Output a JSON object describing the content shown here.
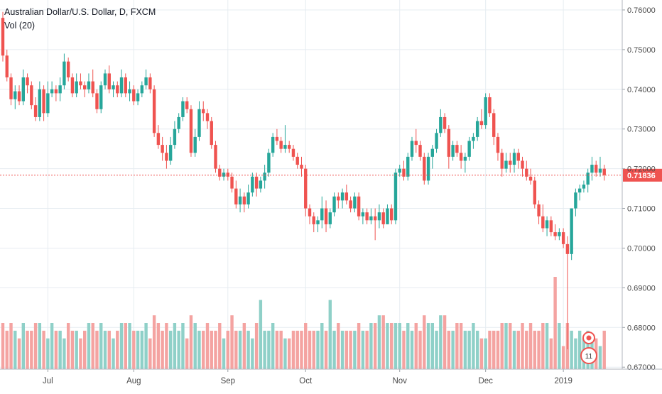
{
  "header": {
    "title": "Australian Dollar/U.S. Dollar, D, FXCM",
    "volume_label": "Vol (20)"
  },
  "colors": {
    "up": "#26a69a",
    "down": "#ef5350",
    "up_volume": "#8fd0c8",
    "down_volume": "#f4a3a1",
    "grid": "#e6ecf1",
    "price_line": "#ef5350",
    "axis_text": "#4a4a4a",
    "background": "#ffffff"
  },
  "chart_data": {
    "type": "candlestick",
    "title": "Australian Dollar/U.S. Dollar, D, FXCM",
    "y_axis": {
      "ticks": [
        "0.76000",
        "0.75000",
        "0.74000",
        "0.73000",
        "0.72000",
        "0.71000",
        "0.70000",
        "0.69000",
        "0.68000",
        "0.67000"
      ],
      "range": [
        0.6695,
        0.7625
      ],
      "position": "right"
    },
    "x_axis": {
      "ticks": [
        {
          "label": "Jul",
          "index": 11
        },
        {
          "label": "Aug",
          "index": 32
        },
        {
          "label": "Sep",
          "index": 55
        },
        {
          "label": "Oct",
          "index": 74
        },
        {
          "label": "Nov",
          "index": 97
        },
        {
          "label": "Dec",
          "index": 118
        },
        {
          "label": "2019",
          "index": 137
        }
      ]
    },
    "last_price": {
      "value": 0.71836,
      "label": "0.71836"
    },
    "ohlc": [
      [
        0.758,
        0.7595,
        0.747,
        0.7485
      ],
      [
        0.7485,
        0.75,
        0.742,
        0.743
      ],
      [
        0.743,
        0.744,
        0.736,
        0.7375
      ],
      [
        0.7375,
        0.741,
        0.735,
        0.7395
      ],
      [
        0.7395,
        0.741,
        0.736,
        0.737
      ],
      [
        0.737,
        0.745,
        0.736,
        0.743
      ],
      [
        0.743,
        0.744,
        0.739,
        0.741
      ],
      [
        0.741,
        0.742,
        0.735,
        0.736
      ],
      [
        0.736,
        0.738,
        0.732,
        0.733
      ],
      [
        0.733,
        0.742,
        0.732,
        0.74
      ],
      [
        0.74,
        0.741,
        0.732,
        0.734
      ],
      [
        0.734,
        0.742,
        0.733,
        0.739
      ],
      [
        0.739,
        0.742,
        0.738,
        0.74
      ],
      [
        0.74,
        0.741,
        0.737,
        0.739
      ],
      [
        0.739,
        0.743,
        0.737,
        0.741
      ],
      [
        0.741,
        0.749,
        0.74,
        0.747
      ],
      [
        0.747,
        0.748,
        0.742,
        0.743
      ],
      [
        0.743,
        0.744,
        0.738,
        0.739
      ],
      [
        0.739,
        0.744,
        0.738,
        0.742
      ],
      [
        0.742,
        0.744,
        0.74,
        0.741
      ],
      [
        0.741,
        0.742,
        0.738,
        0.74
      ],
      [
        0.74,
        0.744,
        0.739,
        0.742
      ],
      [
        0.742,
        0.745,
        0.738,
        0.739
      ],
      [
        0.739,
        0.74,
        0.734,
        0.735
      ],
      [
        0.735,
        0.742,
        0.734,
        0.741
      ],
      [
        0.741,
        0.745,
        0.74,
        0.744
      ],
      [
        0.744,
        0.746,
        0.739,
        0.74
      ],
      [
        0.74,
        0.742,
        0.738,
        0.741
      ],
      [
        0.741,
        0.742,
        0.738,
        0.739
      ],
      [
        0.739,
        0.745,
        0.738,
        0.743
      ],
      [
        0.743,
        0.744,
        0.738,
        0.739
      ],
      [
        0.739,
        0.742,
        0.737,
        0.74
      ],
      [
        0.74,
        0.741,
        0.736,
        0.737
      ],
      [
        0.737,
        0.74,
        0.736,
        0.739
      ],
      [
        0.739,
        0.742,
        0.738,
        0.741
      ],
      [
        0.741,
        0.745,
        0.74,
        0.743
      ],
      [
        0.743,
        0.744,
        0.739,
        0.74
      ],
      [
        0.74,
        0.741,
        0.728,
        0.729
      ],
      [
        0.729,
        0.731,
        0.725,
        0.726
      ],
      [
        0.726,
        0.728,
        0.722,
        0.724
      ],
      [
        0.724,
        0.726,
        0.72,
        0.722
      ],
      [
        0.722,
        0.728,
        0.721,
        0.726
      ],
      [
        0.726,
        0.732,
        0.725,
        0.73
      ],
      [
        0.73,
        0.734,
        0.729,
        0.733
      ],
      [
        0.733,
        0.738,
        0.732,
        0.737
      ],
      [
        0.737,
        0.738,
        0.734,
        0.735
      ],
      [
        0.735,
        0.736,
        0.723,
        0.724
      ],
      [
        0.724,
        0.73,
        0.723,
        0.728
      ],
      [
        0.728,
        0.737,
        0.727,
        0.735
      ],
      [
        0.735,
        0.737,
        0.732,
        0.734
      ],
      [
        0.734,
        0.735,
        0.73,
        0.732
      ],
      [
        0.732,
        0.733,
        0.725,
        0.726
      ],
      [
        0.726,
        0.727,
        0.719,
        0.72
      ],
      [
        0.72,
        0.721,
        0.717,
        0.718
      ],
      [
        0.718,
        0.72,
        0.717,
        0.719
      ],
      [
        0.719,
        0.72,
        0.717,
        0.718
      ],
      [
        0.718,
        0.719,
        0.714,
        0.715
      ],
      [
        0.715,
        0.717,
        0.71,
        0.711
      ],
      [
        0.711,
        0.715,
        0.709,
        0.713
      ],
      [
        0.713,
        0.714,
        0.709,
        0.711
      ],
      [
        0.711,
        0.716,
        0.71,
        0.714
      ],
      [
        0.714,
        0.719,
        0.713,
        0.718
      ],
      [
        0.718,
        0.719,
        0.713,
        0.715
      ],
      [
        0.715,
        0.718,
        0.714,
        0.717
      ],
      [
        0.717,
        0.721,
        0.715,
        0.719
      ],
      [
        0.719,
        0.725,
        0.718,
        0.724
      ],
      [
        0.724,
        0.729,
        0.723,
        0.728
      ],
      [
        0.728,
        0.73,
        0.726,
        0.727
      ],
      [
        0.727,
        0.728,
        0.724,
        0.725
      ],
      [
        0.725,
        0.731,
        0.724,
        0.726
      ],
      [
        0.726,
        0.727,
        0.724,
        0.725
      ],
      [
        0.725,
        0.726,
        0.722,
        0.723
      ],
      [
        0.723,
        0.724,
        0.72,
        0.721
      ],
      [
        0.721,
        0.723,
        0.718,
        0.72
      ],
      [
        0.72,
        0.721,
        0.708,
        0.71
      ],
      [
        0.71,
        0.711,
        0.706,
        0.708
      ],
      [
        0.708,
        0.709,
        0.704,
        0.706
      ],
      [
        0.706,
        0.708,
        0.704,
        0.707
      ],
      [
        0.707,
        0.713,
        0.705,
        0.71
      ],
      [
        0.71,
        0.712,
        0.704,
        0.706
      ],
      [
        0.706,
        0.71,
        0.705,
        0.709
      ],
      [
        0.709,
        0.714,
        0.708,
        0.713
      ],
      [
        0.713,
        0.714,
        0.71,
        0.712
      ],
      [
        0.712,
        0.715,
        0.71,
        0.714
      ],
      [
        0.714,
        0.716,
        0.711,
        0.712
      ],
      [
        0.712,
        0.713,
        0.709,
        0.71
      ],
      [
        0.71,
        0.714,
        0.709,
        0.713
      ],
      [
        0.713,
        0.714,
        0.707,
        0.708
      ],
      [
        0.708,
        0.71,
        0.706,
        0.709
      ],
      [
        0.709,
        0.71,
        0.706,
        0.707
      ],
      [
        0.707,
        0.71,
        0.706,
        0.708
      ],
      [
        0.708,
        0.71,
        0.702,
        0.707
      ],
      [
        0.707,
        0.711,
        0.705,
        0.709
      ],
      [
        0.709,
        0.71,
        0.705,
        0.706
      ],
      [
        0.706,
        0.711,
        0.706,
        0.71
      ],
      [
        0.71,
        0.711,
        0.706,
        0.707
      ],
      [
        0.707,
        0.72,
        0.706,
        0.719
      ],
      [
        0.719,
        0.721,
        0.718,
        0.72
      ],
      [
        0.72,
        0.722,
        0.717,
        0.718
      ],
      [
        0.718,
        0.724,
        0.717,
        0.723
      ],
      [
        0.723,
        0.728,
        0.722,
        0.727
      ],
      [
        0.727,
        0.73,
        0.724,
        0.726
      ],
      [
        0.726,
        0.727,
        0.722,
        0.723
      ],
      [
        0.723,
        0.724,
        0.716,
        0.717
      ],
      [
        0.717,
        0.724,
        0.716,
        0.723
      ],
      [
        0.723,
        0.726,
        0.72,
        0.725
      ],
      [
        0.725,
        0.73,
        0.724,
        0.729
      ],
      [
        0.729,
        0.735,
        0.728,
        0.733
      ],
      [
        0.733,
        0.734,
        0.729,
        0.73
      ],
      [
        0.73,
        0.731,
        0.72,
        0.723
      ],
      [
        0.723,
        0.727,
        0.722,
        0.726
      ],
      [
        0.726,
        0.727,
        0.723,
        0.724
      ],
      [
        0.724,
        0.726,
        0.72,
        0.722
      ],
      [
        0.722,
        0.724,
        0.719,
        0.723
      ],
      [
        0.723,
        0.728,
        0.722,
        0.727
      ],
      [
        0.727,
        0.729,
        0.725,
        0.728
      ],
      [
        0.728,
        0.733,
        0.727,
        0.732
      ],
      [
        0.732,
        0.735,
        0.73,
        0.731
      ],
      [
        0.731,
        0.739,
        0.73,
        0.738
      ],
      [
        0.738,
        0.739,
        0.733,
        0.734
      ],
      [
        0.734,
        0.735,
        0.726,
        0.728
      ],
      [
        0.728,
        0.729,
        0.722,
        0.724
      ],
      [
        0.724,
        0.725,
        0.718,
        0.72
      ],
      [
        0.72,
        0.724,
        0.719,
        0.722
      ],
      [
        0.722,
        0.724,
        0.719,
        0.721
      ],
      [
        0.721,
        0.725,
        0.719,
        0.724
      ],
      [
        0.724,
        0.725,
        0.72,
        0.722
      ],
      [
        0.722,
        0.723,
        0.718,
        0.72
      ],
      [
        0.72,
        0.722,
        0.717,
        0.718
      ],
      [
        0.718,
        0.72,
        0.716,
        0.717
      ],
      [
        0.717,
        0.718,
        0.71,
        0.711
      ],
      [
        0.711,
        0.712,
        0.706,
        0.708
      ],
      [
        0.708,
        0.711,
        0.704,
        0.705
      ],
      [
        0.705,
        0.708,
        0.703,
        0.707
      ],
      [
        0.707,
        0.708,
        0.703,
        0.704
      ],
      [
        0.704,
        0.706,
        0.702,
        0.703
      ],
      [
        0.703,
        0.705,
        0.702,
        0.704
      ],
      [
        0.704,
        0.705,
        0.7,
        0.701
      ],
      [
        0.701,
        0.703,
        0.6745,
        0.6985
      ],
      [
        0.6985,
        0.71,
        0.697,
        0.71
      ],
      [
        0.71,
        0.715,
        0.708,
        0.714
      ],
      [
        0.714,
        0.716,
        0.712,
        0.715
      ],
      [
        0.715,
        0.717,
        0.714,
        0.716
      ],
      [
        0.716,
        0.72,
        0.714,
        0.719
      ],
      [
        0.719,
        0.723,
        0.717,
        0.721
      ],
      [
        0.721,
        0.722,
        0.718,
        0.719
      ],
      [
        0.719,
        0.723,
        0.718,
        0.72
      ],
      [
        0.72,
        0.721,
        0.717,
        0.7184
      ]
    ],
    "volume": [
      6,
      5,
      6,
      5,
      4,
      6,
      5,
      5,
      6,
      6,
      5,
      4,
      6,
      5,
      5,
      4,
      6,
      5,
      5,
      4,
      5,
      6,
      6,
      5,
      6,
      5,
      5,
      4,
      5,
      6,
      6,
      6,
      5,
      5,
      5,
      6,
      4,
      7,
      6,
      5,
      6,
      5,
      6,
      5,
      6,
      4,
      7,
      6,
      5,
      5,
      6,
      5,
      5,
      6,
      4,
      5,
      7,
      5,
      5,
      6,
      5,
      4,
      6,
      9,
      5,
      5,
      6,
      5,
      5,
      4,
      4,
      5,
      5,
      5,
      6,
      5,
      5,
      5,
      6,
      5,
      9,
      5,
      6,
      5,
      5,
      5,
      5,
      6,
      5,
      5,
      6,
      6,
      7,
      7,
      6,
      6,
      6,
      6,
      5,
      6,
      5,
      6,
      5,
      7,
      6,
      6,
      5,
      7,
      7,
      5,
      5,
      6,
      6,
      5,
      5,
      6,
      5,
      4,
      4,
      5,
      5,
      5,
      6,
      6,
      6,
      5,
      5,
      6,
      5,
      6,
      5,
      5,
      6,
      6,
      4,
      12,
      6,
      3,
      6,
      5,
      4,
      5,
      4,
      5,
      4,
      4,
      3,
      5
    ]
  },
  "widgets": {
    "badge_number": "11"
  }
}
